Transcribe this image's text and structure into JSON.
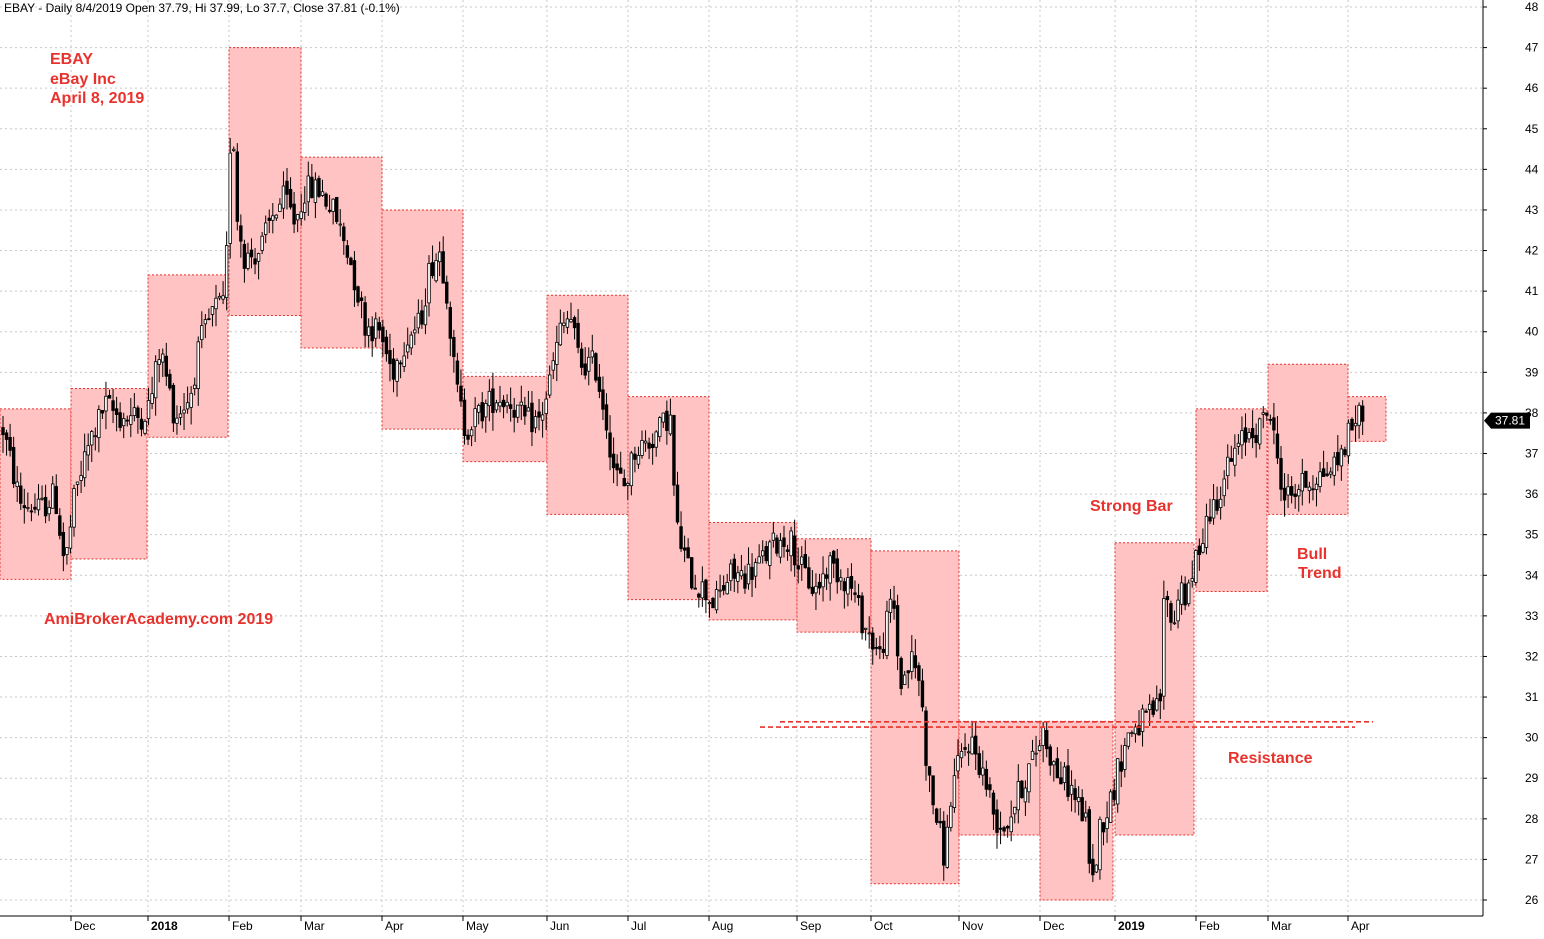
{
  "header": {
    "text": "EBAY - Daily 8/4/2019 Open 37.79, Hi 37.99, Lo 37.7, Close 37.81 (-0.1%)"
  },
  "annotations": {
    "ticker": "EBAY",
    "company": "eBay Inc",
    "date": "April 8, 2019",
    "watermark": "AmiBrokerAcademy.com  2019",
    "strong_bar": "Strong Bar",
    "bull": "Bull",
    "trend": "Trend",
    "resistance": "Resistance"
  },
  "price_badge": "37.81",
  "colors": {
    "box_fill": "#ffc3c3",
    "box_border": "#e8322d",
    "annotation": "#e8322d",
    "candle": "#000000",
    "grid": "#c8c8c8"
  },
  "chart_data": {
    "type": "candlestick",
    "ylim": [
      25.6,
      48.2
    ],
    "y_ticks": [
      26,
      27,
      28,
      29,
      30,
      31,
      32,
      33,
      34,
      35,
      36,
      37,
      38,
      39,
      40,
      41,
      42,
      43,
      44,
      45,
      46,
      47,
      48
    ],
    "x_ticks": [
      {
        "label": "Dec",
        "day": 71
      },
      {
        "label": "2018",
        "day": 148,
        "bold": true
      },
      {
        "label": "Feb",
        "day": 229
      },
      {
        "label": "Mar",
        "day": 301
      },
      {
        "label": "Apr",
        "day": 382
      },
      {
        "label": "May",
        "day": 463
      },
      {
        "label": "Jun",
        "day": 547
      },
      {
        "label": "Jul",
        "day": 628
      },
      {
        "label": "Aug",
        "day": 709
      },
      {
        "label": "Sep",
        "day": 797
      },
      {
        "label": "Oct",
        "day": 871
      },
      {
        "label": "Nov",
        "day": 959
      },
      {
        "label": "Dec",
        "day": 1040
      },
      {
        "label": "2019",
        "day": 1115,
        "bold": true
      },
      {
        "label": "Feb",
        "day": 1196
      },
      {
        "label": "Mar",
        "day": 1268
      },
      {
        "label": "Apr",
        "day": 1348
      }
    ],
    "monthly_ranges": [
      {
        "month": "Nov 2017",
        "start": 0,
        "end": 71,
        "low": 33.9,
        "high": 38.1
      },
      {
        "month": "Dec 2017",
        "start": 71,
        "end": 147,
        "low": 34.4,
        "high": 38.6
      },
      {
        "month": "Jan 2018",
        "start": 148,
        "end": 228,
        "low": 37.4,
        "high": 41.4
      },
      {
        "month": "Feb 2018",
        "start": 229,
        "end": 301,
        "low": 40.4,
        "high": 47.0
      },
      {
        "month": "Mar 2018",
        "start": 301,
        "end": 382,
        "low": 39.6,
        "high": 44.3
      },
      {
        "month": "Apr 2018",
        "start": 382,
        "end": 463,
        "low": 37.6,
        "high": 43.0
      },
      {
        "month": "May 2018",
        "start": 463,
        "end": 547,
        "low": 36.8,
        "high": 38.9
      },
      {
        "month": "Jun 2018",
        "start": 547,
        "end": 628,
        "low": 35.5,
        "high": 40.9
      },
      {
        "month": "Jul 2018",
        "start": 628,
        "end": 709,
        "low": 33.4,
        "high": 38.4
      },
      {
        "month": "Aug 2018",
        "start": 709,
        "end": 797,
        "low": 32.9,
        "high": 35.3
      },
      {
        "month": "Sep 2018",
        "start": 797,
        "end": 871,
        "low": 32.6,
        "high": 34.9
      },
      {
        "month": "Oct 2018",
        "start": 871,
        "end": 959,
        "low": 26.4,
        "high": 34.6
      },
      {
        "month": "Nov 2018",
        "start": 959,
        "end": 1040,
        "low": 27.6,
        "high": 30.4
      },
      {
        "month": "Dec 2018",
        "start": 1040,
        "end": 1113,
        "low": 26.0,
        "high": 30.4
      },
      {
        "month": "Jan 2019",
        "start": 1115,
        "end": 1194,
        "low": 27.6,
        "high": 34.8
      },
      {
        "month": "Feb 2019",
        "start": 1196,
        "end": 1267,
        "low": 33.6,
        "high": 38.1
      },
      {
        "month": "Mar 2019",
        "start": 1268,
        "end": 1348,
        "low": 35.5,
        "high": 39.2
      },
      {
        "month": "Apr 2019",
        "start": 1348,
        "end": 1386,
        "low": 37.3,
        "high": 38.4
      }
    ],
    "price_path": [
      [
        3,
        37.6
      ],
      [
        20,
        35.8
      ],
      [
        40,
        35.6
      ],
      [
        55,
        36.0
      ],
      [
        65,
        34.2
      ],
      [
        75,
        36.0
      ],
      [
        90,
        37.3
      ],
      [
        105,
        38.2
      ],
      [
        120,
        37.9
      ],
      [
        140,
        37.9
      ],
      [
        150,
        38.2
      ],
      [
        160,
        39.6
      ],
      [
        175,
        37.9
      ],
      [
        190,
        38.4
      ],
      [
        200,
        39.7
      ],
      [
        215,
        40.6
      ],
      [
        225,
        40.6
      ],
      [
        232,
        46.0
      ],
      [
        236,
        43.0
      ],
      [
        245,
        41.8
      ],
      [
        260,
        42.0
      ],
      [
        275,
        43.0
      ],
      [
        285,
        43.3
      ],
      [
        295,
        42.7
      ],
      [
        305,
        43.5
      ],
      [
        320,
        43.5
      ],
      [
        335,
        42.9
      ],
      [
        350,
        41.8
      ],
      [
        365,
        40.2
      ],
      [
        380,
        40.0
      ],
      [
        392,
        39.0
      ],
      [
        405,
        39.8
      ],
      [
        420,
        40.2
      ],
      [
        430,
        41.6
      ],
      [
        440,
        42.0
      ],
      [
        447,
        41.0
      ],
      [
        455,
        38.8
      ],
      [
        465,
        37.6
      ],
      [
        480,
        38.0
      ],
      [
        495,
        38.4
      ],
      [
        510,
        38.3
      ],
      [
        525,
        37.8
      ],
      [
        540,
        37.8
      ],
      [
        550,
        38.8
      ],
      [
        560,
        40.0
      ],
      [
        570,
        40.4
      ],
      [
        580,
        39.2
      ],
      [
        595,
        39.2
      ],
      [
        605,
        38.0
      ],
      [
        615,
        36.5
      ],
      [
        625,
        36.2
      ],
      [
        635,
        37.1
      ],
      [
        650,
        37.3
      ],
      [
        660,
        37.6
      ],
      [
        670,
        38.0
      ],
      [
        676,
        35.2
      ],
      [
        690,
        34.0
      ],
      [
        705,
        33.6
      ],
      [
        715,
        33.3
      ],
      [
        730,
        34.0
      ],
      [
        745,
        34.0
      ],
      [
        760,
        34.3
      ],
      [
        775,
        34.8
      ],
      [
        790,
        34.9
      ],
      [
        800,
        34.2
      ],
      [
        815,
        33.6
      ],
      [
        830,
        34.3
      ],
      [
        850,
        33.8
      ],
      [
        862,
        32.9
      ],
      [
        880,
        32.0
      ],
      [
        893,
        33.5
      ],
      [
        900,
        31.3
      ],
      [
        912,
        31.9
      ],
      [
        920,
        31.4
      ],
      [
        928,
        29.0
      ],
      [
        935,
        28.2
      ],
      [
        945,
        27.0
      ],
      [
        952,
        28.8
      ],
      [
        960,
        29.4
      ],
      [
        970,
        30.0
      ],
      [
        985,
        29.0
      ],
      [
        995,
        28.0
      ],
      [
        1005,
        27.8
      ],
      [
        1015,
        28.4
      ],
      [
        1025,
        29.0
      ],
      [
        1035,
        29.6
      ],
      [
        1043,
        30.2
      ],
      [
        1055,
        29.2
      ],
      [
        1070,
        28.8
      ],
      [
        1085,
        28.0
      ],
      [
        1093,
        26.4
      ],
      [
        1100,
        27.8
      ],
      [
        1110,
        28.4
      ],
      [
        1120,
        29.4
      ],
      [
        1130,
        30.2
      ],
      [
        1145,
        30.4
      ],
      [
        1160,
        30.8
      ],
      [
        1165,
        34.0
      ],
      [
        1172,
        32.6
      ],
      [
        1180,
        33.8
      ],
      [
        1188,
        33.4
      ],
      [
        1196,
        34.4
      ],
      [
        1205,
        35.3
      ],
      [
        1215,
        35.8
      ],
      [
        1225,
        36.5
      ],
      [
        1235,
        37.0
      ],
      [
        1250,
        37.6
      ],
      [
        1260,
        37.6
      ],
      [
        1268,
        38.2
      ],
      [
        1275,
        37.2
      ],
      [
        1285,
        35.9
      ],
      [
        1300,
        36.2
      ],
      [
        1315,
        36.4
      ],
      [
        1330,
        36.6
      ],
      [
        1340,
        36.9
      ],
      [
        1350,
        37.6
      ],
      [
        1358,
        38.0
      ],
      [
        1366,
        37.8
      ]
    ],
    "resistance_lines": [
      {
        "from": 760,
        "to": 1355,
        "value": 30.26
      },
      {
        "from": 780,
        "to": 1373,
        "value": 30.39
      }
    ],
    "last_close": 37.81
  }
}
